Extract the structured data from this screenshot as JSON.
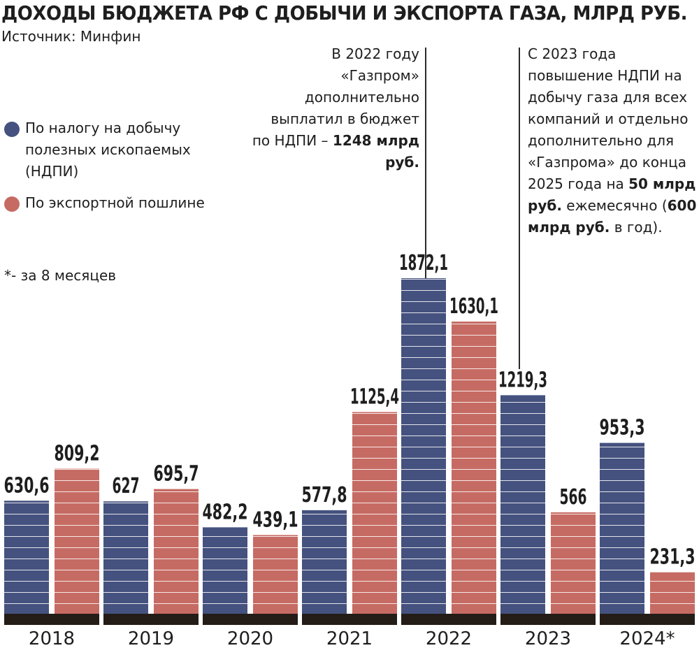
{
  "title": "ДОХОДЫ БЮДЖЕТА РФ С ДОБЫЧИ И ЭКСПОРТА ГАЗА, МЛРД РУБ.",
  "source": "Источник: Минфин",
  "legend": [
    {
      "label": "По налогу на добычу полезных ископаемых (НДПИ)",
      "color": "#45527f"
    },
    {
      "label": "По экспортной пошлине",
      "color": "#c66b63"
    }
  ],
  "footnote": "*- за 8 месяцев",
  "annotations": [
    {
      "text": "В 2022 году «Газпром» дополнительно выплатил в бюджет по НДПИ –",
      "bold": "1248 млрд руб."
    },
    {
      "text1": "С 2023 года повышение НДПИ на добычу газа для всех компаний и отдельно дополнительно для «Газпрома» до конца 2025 года на",
      "bold1": "50 млрд руб.",
      "text2": "ежемесячно (",
      "bold2": "600 млрд руб.",
      "text3": "в год)."
    }
  ],
  "chart_data": {
    "type": "bar",
    "categories": [
      "2018",
      "2019",
      "2020",
      "2021",
      "2022",
      "2023",
      "2024*"
    ],
    "series": [
      {
        "name": "По налогу на добычу полезных ископаемых (НДПИ)",
        "color": "#45527f",
        "values": [
          630.6,
          627,
          482.2,
          577.8,
          1872.1,
          1219.3,
          953.3
        ],
        "labels": [
          "630,6",
          "627",
          "482,2",
          "577,8",
          "1872,1",
          "1219,3",
          "953,3"
        ]
      },
      {
        "name": "По экспортной пошлине",
        "color": "#c66b63",
        "values": [
          809.2,
          695.7,
          439.1,
          1125.4,
          1630.1,
          566,
          231.3
        ],
        "labels": [
          "809,2",
          "695,7",
          "439,1",
          "1125,4",
          "1630,1",
          "566",
          "231,3"
        ]
      }
    ],
    "ylim": [
      0,
      1872.1
    ],
    "grid": false,
    "legend_position": "left"
  }
}
